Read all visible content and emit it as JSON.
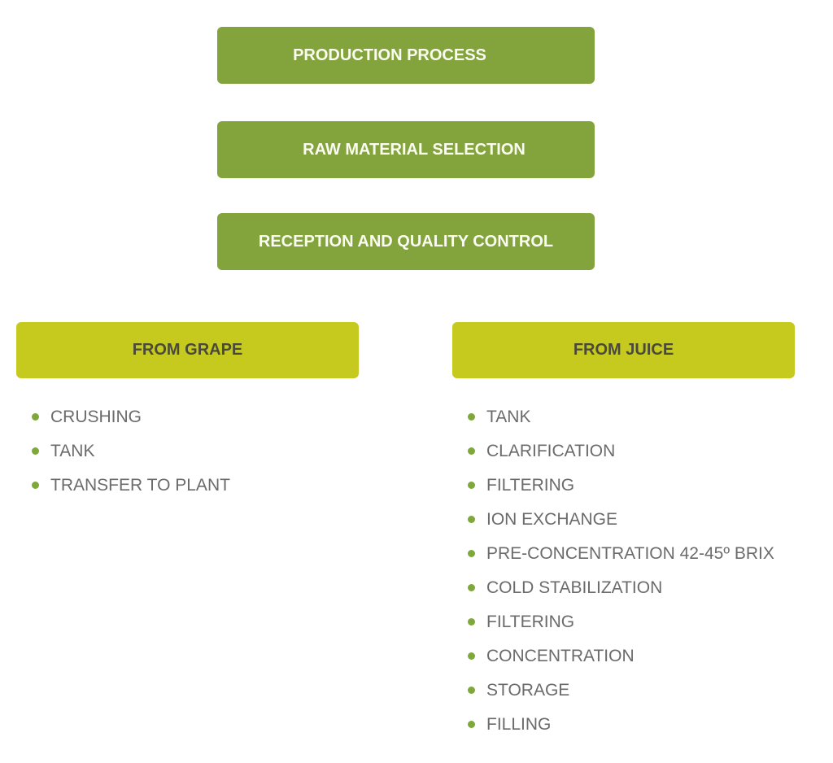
{
  "steps": [
    "PRODUCTION PROCESS",
    "RAW MATERIAL SELECTION",
    "RECEPTION AND QUALITY CONTROL"
  ],
  "branches": {
    "grape": {
      "title": "FROM GRAPE",
      "items": [
        "CRUSHING",
        "TANK",
        "TRANSFER TO PLANT"
      ]
    },
    "juice": {
      "title": "FROM JUICE",
      "items": [
        "TANK",
        "CLARIFICATION",
        "FILTERING",
        "ION EXCHANGE",
        "PRE-CONCENTRATION 42-45º BRIX",
        "COLD STABILIZATION",
        "FILTERING",
        "CONCENTRATION",
        "STORAGE",
        "FILLING"
      ]
    }
  },
  "colors": {
    "step": "#83a43c",
    "branch": "#c6ca1f",
    "bullet": "#7fa83a"
  }
}
